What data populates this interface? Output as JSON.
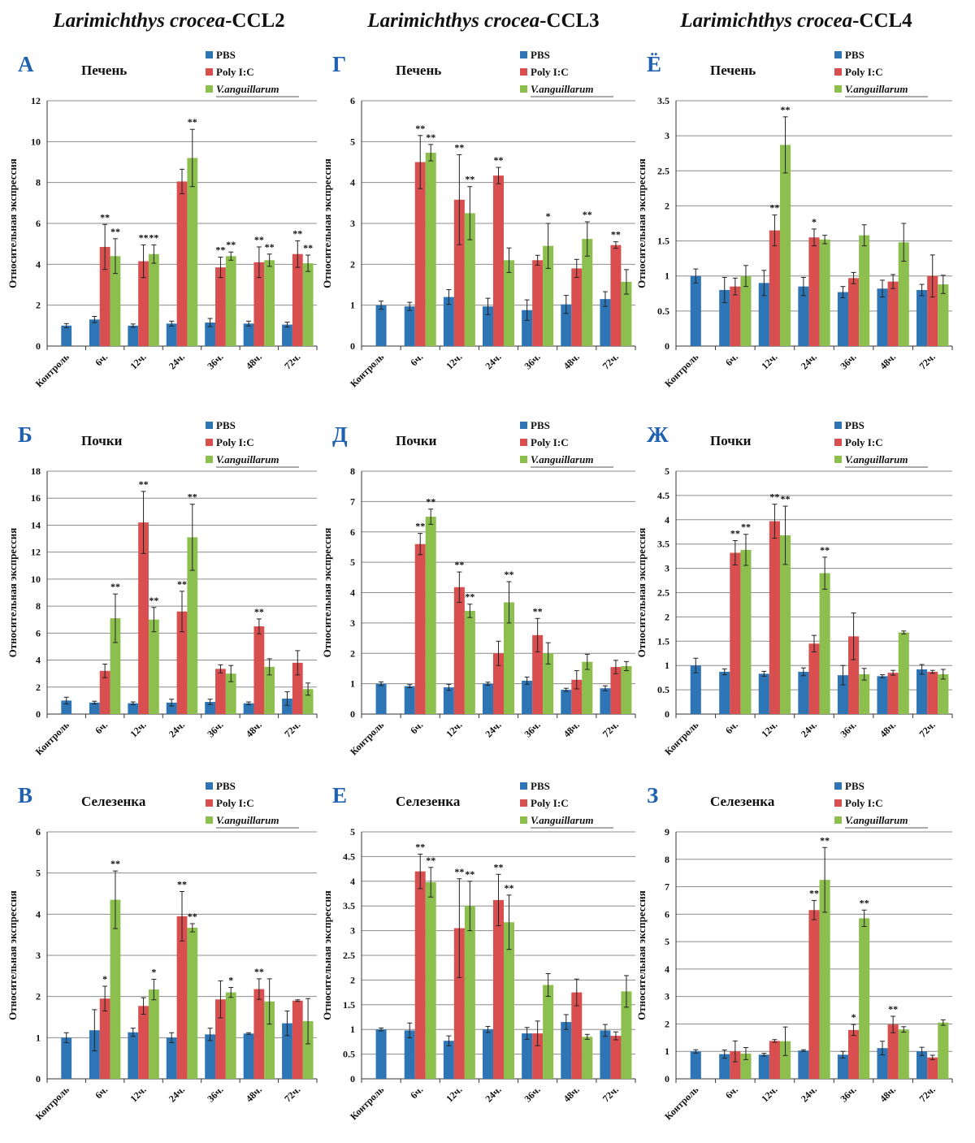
{
  "column_titles": [
    {
      "species": "Larimichthys crocea",
      "gene": "-CCL2"
    },
    {
      "species": "Larimichthys crocea",
      "gene": "-CCL3"
    },
    {
      "species": "Larimichthys crocea",
      "gene": "-CCL4"
    }
  ],
  "colors": {
    "PBS": "#2e75b6",
    "Poly I:C": "#d94f4f",
    "V.anguillarum": "#8cbf4d"
  },
  "chart_data": [
    {
      "type": "bar",
      "letter": "А",
      "title": "Печень",
      "ylabel": "Относительная экспрессия",
      "ylim": [
        0,
        12
      ],
      "yticks": [
        0,
        2,
        4,
        6,
        8,
        10,
        12
      ],
      "categories": [
        "Контроль",
        "6ч.",
        "12ч.",
        "24ч.",
        "36ч.",
        "48ч.",
        "72ч."
      ],
      "series": [
        {
          "name": "PBS",
          "values": [
            1.0,
            1.3,
            1.0,
            1.1,
            1.15,
            1.1,
            1.05
          ],
          "errors": [
            0.1,
            0.15,
            0.08,
            0.12,
            0.2,
            0.12,
            0.12
          ],
          "sig": [
            "",
            "",
            "",
            "",
            "",
            "",
            ""
          ]
        },
        {
          "name": "Poly I:C",
          "values": [
            null,
            4.85,
            4.15,
            8.05,
            3.85,
            4.1,
            4.5
          ],
          "errors": [
            null,
            1.1,
            0.8,
            0.6,
            0.5,
            0.75,
            0.65
          ],
          "sig": [
            "",
            "**",
            "**",
            "",
            "**",
            "**",
            "**"
          ]
        },
        {
          "name": "V.anguillarum",
          "values": [
            null,
            4.4,
            4.5,
            9.2,
            4.4,
            4.2,
            4.05
          ],
          "errors": [
            null,
            0.85,
            0.45,
            1.4,
            0.2,
            0.3,
            0.4
          ],
          "sig": [
            "",
            "**",
            "**",
            "**",
            "**",
            "**",
            "**"
          ]
        }
      ]
    },
    {
      "type": "bar",
      "letter": "Г",
      "title": "Печень",
      "ylabel": "Относительная экспрессия",
      "ylim": [
        0,
        6
      ],
      "yticks": [
        0,
        1,
        2,
        3,
        4,
        5,
        6
      ],
      "categories": [
        "Контроль",
        "6ч.",
        "12ч.",
        "24ч.",
        "36ч.",
        "48ч.",
        "72ч."
      ],
      "series": [
        {
          "name": "PBS",
          "values": [
            1.0,
            0.97,
            1.2,
            0.97,
            0.88,
            1.02,
            1.15
          ],
          "errors": [
            0.1,
            0.1,
            0.18,
            0.2,
            0.25,
            0.22,
            0.18
          ],
          "sig": [
            "",
            "",
            "",
            "",
            "",
            "",
            ""
          ]
        },
        {
          "name": "Poly I:C",
          "values": [
            null,
            4.5,
            3.58,
            4.17,
            2.1,
            1.9,
            2.47
          ],
          "errors": [
            null,
            0.65,
            1.1,
            0.2,
            0.12,
            0.22,
            0.08
          ],
          "sig": [
            "",
            "**",
            "**",
            "**",
            "",
            "",
            "**"
          ]
        },
        {
          "name": "V.anguillarum",
          "values": [
            null,
            4.73,
            3.25,
            2.1,
            2.45,
            2.62,
            1.57
          ],
          "errors": [
            null,
            0.2,
            0.65,
            0.3,
            0.55,
            0.42,
            0.3
          ],
          "sig": [
            "",
            "**",
            "**",
            "",
            "*",
            "**",
            ""
          ]
        }
      ]
    },
    {
      "type": "bar",
      "letter": "Ё",
      "title": "Печень",
      "ylabel": "Относительная экспрессия",
      "ylim": [
        0,
        3.5
      ],
      "yticks": [
        0,
        0.5,
        1,
        1.5,
        2,
        2.5,
        3,
        3.5
      ],
      "categories": [
        "Контроль",
        "6ч.",
        "12ч.",
        "24ч.",
        "36ч.",
        "48ч.",
        "72ч."
      ],
      "series": [
        {
          "name": "PBS",
          "values": [
            1.0,
            0.8,
            0.9,
            0.85,
            0.77,
            0.82,
            0.8
          ],
          "errors": [
            0.1,
            0.18,
            0.18,
            0.13,
            0.08,
            0.12,
            0.08
          ],
          "sig": [
            "",
            "",
            "",
            "",
            "",
            "",
            ""
          ]
        },
        {
          "name": "Poly I:C",
          "values": [
            null,
            0.85,
            1.65,
            1.55,
            0.97,
            0.92,
            1.0
          ],
          "errors": [
            null,
            0.12,
            0.22,
            0.12,
            0.08,
            0.1,
            0.3
          ],
          "sig": [
            "",
            "",
            "**",
            "*",
            "",
            "",
            ""
          ]
        },
        {
          "name": "V.anguillarum",
          "values": [
            null,
            1.0,
            2.87,
            1.52,
            1.58,
            1.48,
            0.88
          ],
          "errors": [
            null,
            0.15,
            0.4,
            0.06,
            0.15,
            0.27,
            0.13
          ],
          "sig": [
            "",
            "",
            "**",
            "",
            "",
            "",
            ""
          ]
        }
      ]
    },
    {
      "type": "bar",
      "letter": "Б",
      "title": "Почки",
      "ylabel": "Относительная экспрессия",
      "ylim": [
        0,
        18
      ],
      "yticks": [
        0,
        2,
        4,
        6,
        8,
        10,
        12,
        14,
        16,
        18
      ],
      "categories": [
        "Контроль",
        "6ч.",
        "12ч.",
        "24ч.",
        "36ч.",
        "48ч.",
        "72ч."
      ],
      "series": [
        {
          "name": "PBS",
          "values": [
            1.0,
            0.85,
            0.8,
            0.85,
            0.9,
            0.8,
            1.15
          ],
          "errors": [
            0.25,
            0.1,
            0.1,
            0.25,
            0.2,
            0.1,
            0.5
          ],
          "sig": [
            "",
            "",
            "",
            "",
            "",
            "",
            ""
          ]
        },
        {
          "name": "Poly I:C",
          "values": [
            null,
            3.2,
            14.2,
            7.6,
            3.35,
            6.5,
            3.8
          ],
          "errors": [
            null,
            0.5,
            2.3,
            1.5,
            0.3,
            0.55,
            0.9
          ],
          "sig": [
            "",
            "",
            "**",
            "**",
            "",
            "**",
            ""
          ]
        },
        {
          "name": "V.anguillarum",
          "values": [
            null,
            7.1,
            7.0,
            13.1,
            3.0,
            3.5,
            1.85
          ],
          "errors": [
            null,
            1.8,
            0.9,
            2.45,
            0.6,
            0.6,
            0.45
          ],
          "sig": [
            "",
            "**",
            "**",
            "**",
            "",
            "",
            ""
          ]
        }
      ]
    },
    {
      "type": "bar",
      "letter": "Д",
      "title": "Почки",
      "ylabel": "Относительная экспрессия",
      "ylim": [
        0,
        8
      ],
      "yticks": [
        0,
        1,
        2,
        3,
        4,
        5,
        6,
        7,
        8
      ],
      "categories": [
        "Контроль",
        "6ч.",
        "12ч.",
        "24ч.",
        "36ч.",
        "48ч.",
        "72ч."
      ],
      "series": [
        {
          "name": "PBS",
          "values": [
            1.0,
            0.92,
            0.88,
            1.0,
            1.1,
            0.8,
            0.85
          ],
          "errors": [
            0.06,
            0.05,
            0.1,
            0.05,
            0.12,
            0.05,
            0.08
          ],
          "sig": [
            "",
            "",
            "",
            "",
            "",
            "",
            ""
          ]
        },
        {
          "name": "Poly I:C",
          "values": [
            null,
            5.6,
            4.18,
            2.0,
            2.6,
            1.13,
            1.55
          ],
          "errors": [
            null,
            0.35,
            0.5,
            0.4,
            0.55,
            0.3,
            0.22
          ],
          "sig": [
            "",
            "**",
            "**",
            "",
            "**",
            "",
            ""
          ]
        },
        {
          "name": "V.anguillarum",
          "values": [
            null,
            6.5,
            3.4,
            3.68,
            2.0,
            1.72,
            1.58
          ],
          "errors": [
            null,
            0.25,
            0.22,
            0.68,
            0.35,
            0.25,
            0.15
          ],
          "sig": [
            "",
            "**",
            "**",
            "**",
            "",
            "",
            ""
          ]
        }
      ]
    },
    {
      "type": "bar",
      "letter": "Ж",
      "title": "Почки",
      "ylabel": "Относительная экспрессия",
      "ylim": [
        0,
        5
      ],
      "yticks": [
        0,
        0.5,
        1,
        1.5,
        2,
        2.5,
        3,
        3.5,
        4,
        4.5,
        5
      ],
      "categories": [
        "Контроль",
        "6ч.",
        "12ч.",
        "24ч.",
        "36ч.",
        "48ч.",
        "72ч."
      ],
      "series": [
        {
          "name": "PBS",
          "values": [
            1.0,
            0.87,
            0.83,
            0.87,
            0.8,
            0.78,
            0.92
          ],
          "errors": [
            0.15,
            0.06,
            0.05,
            0.08,
            0.2,
            0.03,
            0.1
          ],
          "sig": [
            "",
            "",
            "",
            "",
            "",
            "",
            ""
          ]
        },
        {
          "name": "Poly I:C",
          "values": [
            null,
            3.32,
            3.97,
            1.45,
            1.6,
            0.85,
            0.87
          ],
          "errors": [
            null,
            0.25,
            0.35,
            0.17,
            0.48,
            0.05,
            0.03
          ],
          "sig": [
            "",
            "**",
            "**",
            "",
            "",
            "",
            ""
          ]
        },
        {
          "name": "V.anguillarum",
          "values": [
            null,
            3.38,
            3.68,
            2.9,
            0.82,
            1.68,
            0.82
          ],
          "errors": [
            null,
            0.32,
            0.6,
            0.33,
            0.12,
            0.03,
            0.1
          ],
          "sig": [
            "",
            "**",
            "**",
            "**",
            "",
            "",
            ""
          ]
        }
      ]
    },
    {
      "type": "bar",
      "letter": "В",
      "title": "Селезенка",
      "ylabel": "Относительная экспрессия",
      "ylim": [
        0,
        6
      ],
      "yticks": [
        0,
        1,
        2,
        3,
        4,
        5,
        6
      ],
      "categories": [
        "Контроль",
        "6ч.",
        "12ч.",
        "24ч.",
        "36ч.",
        "48ч.",
        "72ч."
      ],
      "series": [
        {
          "name": "PBS",
          "values": [
            1.0,
            1.18,
            1.13,
            1.0,
            1.08,
            1.1,
            1.35
          ],
          "errors": [
            0.12,
            0.5,
            0.1,
            0.12,
            0.15,
            0.02,
            0.3
          ],
          "sig": [
            "",
            "",
            "",
            "",
            "",
            "",
            ""
          ]
        },
        {
          "name": "Poly I:C",
          "values": [
            null,
            1.95,
            1.77,
            3.95,
            1.93,
            2.18,
            1.9
          ],
          "errors": [
            null,
            0.3,
            0.2,
            0.6,
            0.45,
            0.25,
            0.02
          ],
          "sig": [
            "",
            "*",
            "",
            "**",
            "",
            "**",
            ""
          ]
        },
        {
          "name": "V.anguillarum",
          "values": [
            null,
            4.35,
            2.17,
            3.67,
            2.1,
            1.88,
            1.4
          ],
          "errors": [
            null,
            0.7,
            0.25,
            0.1,
            0.12,
            0.55,
            0.55
          ],
          "sig": [
            "",
            "**",
            "*",
            "**",
            "*",
            "",
            ""
          ]
        }
      ]
    },
    {
      "type": "bar",
      "letter": "Е",
      "title": "Селезенка",
      "ylabel": "Относительная экспрессия",
      "ylim": [
        0,
        5
      ],
      "yticks": [
        0,
        0.5,
        1,
        1.5,
        2,
        2.5,
        3,
        3.5,
        4,
        4.5,
        5
      ],
      "categories": [
        "Контроль",
        "6ч.",
        "12ч.",
        "24ч.",
        "36ч.",
        "48ч.",
        "72ч."
      ],
      "series": [
        {
          "name": "PBS",
          "values": [
            1.0,
            0.98,
            0.77,
            1.0,
            0.92,
            1.15,
            0.98
          ],
          "errors": [
            0.03,
            0.15,
            0.1,
            0.06,
            0.12,
            0.15,
            0.12
          ],
          "sig": [
            "",
            "",
            "",
            "",
            "",
            "",
            ""
          ]
        },
        {
          "name": "Poly I:C",
          "values": [
            null,
            4.2,
            3.05,
            3.62,
            0.92,
            1.75,
            0.87
          ],
          "errors": [
            null,
            0.35,
            1.0,
            0.52,
            0.25,
            0.27,
            0.08
          ],
          "sig": [
            "",
            "**",
            "**",
            "**",
            "",
            "",
            ""
          ]
        },
        {
          "name": "V.anguillarum",
          "values": [
            null,
            3.98,
            3.5,
            3.17,
            1.9,
            0.85,
            1.77
          ],
          "errors": [
            null,
            0.3,
            0.5,
            0.55,
            0.23,
            0.05,
            0.32
          ],
          "sig": [
            "",
            "**",
            "**",
            "**",
            "",
            "",
            ""
          ]
        }
      ]
    },
    {
      "type": "bar",
      "letter": "З",
      "title": "Селезенка",
      "ylabel": "Относительная экспрессия",
      "ylim": [
        0,
        9
      ],
      "yticks": [
        0,
        1,
        2,
        3,
        4,
        5,
        6,
        7,
        8,
        9
      ],
      "categories": [
        "Контроль",
        "6ч.",
        "12ч.",
        "24ч.",
        "36ч.",
        "48ч.",
        "72ч."
      ],
      "series": [
        {
          "name": "PBS",
          "values": [
            1.0,
            0.9,
            0.88,
            1.03,
            0.88,
            1.12,
            1.0
          ],
          "errors": [
            0.06,
            0.15,
            0.05,
            0.03,
            0.12,
            0.25,
            0.15
          ],
          "sig": [
            "",
            "",
            "",
            "",
            "",
            "",
            ""
          ]
        },
        {
          "name": "Poly I:C",
          "values": [
            null,
            1.0,
            1.38,
            6.15,
            1.78,
            1.98,
            0.78
          ],
          "errors": [
            null,
            0.38,
            0.05,
            0.35,
            0.2,
            0.3,
            0.08
          ],
          "sig": [
            "",
            "",
            "",
            "**",
            "*",
            "**",
            ""
          ]
        },
        {
          "name": "V.anguillarum",
          "values": [
            null,
            0.92,
            1.37,
            7.25,
            5.85,
            1.8,
            2.05
          ],
          "errors": [
            null,
            0.22,
            0.52,
            1.18,
            0.3,
            0.1,
            0.1
          ],
          "sig": [
            "",
            "",
            "",
            "**",
            "**",
            "",
            ""
          ]
        }
      ]
    }
  ]
}
